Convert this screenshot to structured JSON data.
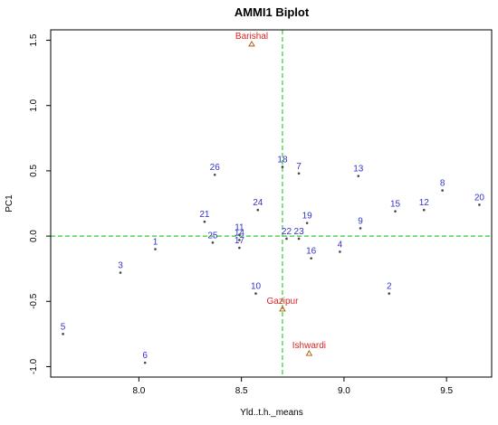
{
  "chart_data": {
    "type": "scatter",
    "title": "AMMI1 Biplot",
    "xlabel": "Yld..t.h._means",
    "ylabel": "PC1",
    "xlim": [
      7.57,
      9.72
    ],
    "ylim": [
      -1.08,
      1.58
    ],
    "x_ticks": [
      8.0,
      8.5,
      9.0,
      9.5
    ],
    "x_tick_labels": [
      "8.0",
      "8.5",
      "9.0",
      "9.5"
    ],
    "y_ticks": [
      -1.0,
      -0.5,
      0.0,
      0.5,
      1.0,
      1.5
    ],
    "y_tick_labels": [
      "-1.0",
      "-0.5",
      "0.0",
      "0.5",
      "1.0",
      "1.5"
    ],
    "reference_lines": {
      "x": 8.7,
      "y": 0.0,
      "color": "#33cc33",
      "style": "dashed"
    },
    "genotypes": {
      "color": "#3333cc",
      "marker": "point",
      "points": [
        {
          "label": "1",
          "x": 8.08,
          "y": -0.1
        },
        {
          "label": "2",
          "x": 9.22,
          "y": -0.44
        },
        {
          "label": "3",
          "x": 7.91,
          "y": -0.28
        },
        {
          "label": "4",
          "x": 8.98,
          "y": -0.12
        },
        {
          "label": "5",
          "x": 7.63,
          "y": -0.75
        },
        {
          "label": "6",
          "x": 8.03,
          "y": -0.97
        },
        {
          "label": "7",
          "x": 8.78,
          "y": 0.48
        },
        {
          "label": "8",
          "x": 9.48,
          "y": 0.35
        },
        {
          "label": "9",
          "x": 9.08,
          "y": 0.06
        },
        {
          "label": "10",
          "x": 8.57,
          "y": -0.44
        },
        {
          "label": "11",
          "x": 8.49,
          "y": 0.01
        },
        {
          "label": "12",
          "x": 9.39,
          "y": 0.2
        },
        {
          "label": "13",
          "x": 9.07,
          "y": 0.46
        },
        {
          "label": "14",
          "x": 8.49,
          "y": -0.03
        },
        {
          "label": "15",
          "x": 9.25,
          "y": 0.19
        },
        {
          "label": "16",
          "x": 8.84,
          "y": -0.17
        },
        {
          "label": "17",
          "x": 8.49,
          "y": -0.09
        },
        {
          "label": "18",
          "x": 8.7,
          "y": 0.53
        },
        {
          "label": "19",
          "x": 8.82,
          "y": 0.1
        },
        {
          "label": "20",
          "x": 9.66,
          "y": 0.24
        },
        {
          "label": "21",
          "x": 8.32,
          "y": 0.11
        },
        {
          "label": "22",
          "x": 8.72,
          "y": -0.02
        },
        {
          "label": "23",
          "x": 8.78,
          "y": -0.02
        },
        {
          "label": "24",
          "x": 8.58,
          "y": 0.2
        },
        {
          "label": "25",
          "x": 8.36,
          "y": -0.05
        },
        {
          "label": "26",
          "x": 8.37,
          "y": 0.47
        }
      ]
    },
    "environments": {
      "color": "#dd2222",
      "marker_color": "#aa5500",
      "marker": "triangle",
      "points": [
        {
          "label": "Barishal",
          "x": 8.55,
          "y": 1.47
        },
        {
          "label": "Gazipur",
          "x": 8.7,
          "y": -0.56
        },
        {
          "label": "Ishwardi",
          "x": 8.83,
          "y": -0.9
        }
      ]
    }
  }
}
